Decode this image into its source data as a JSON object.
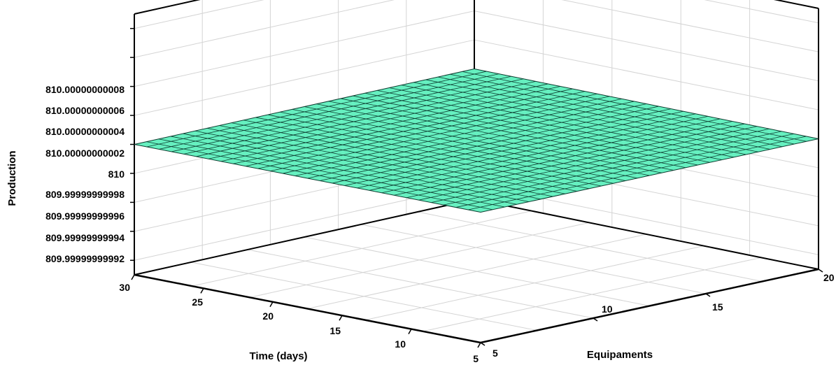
{
  "chart_data": {
    "type": "surface",
    "xlabel": "Equipaments",
    "ylabel": "Time (days)",
    "zlabel": "Production",
    "x_ticks": [
      "5",
      "10",
      "15",
      "20"
    ],
    "y_ticks": [
      "30",
      "25",
      "20",
      "15",
      "10",
      "5"
    ],
    "z_ticks": [
      "809.99999999992",
      "809.99999999994",
      "809.99999999996",
      "809.99999999998",
      "810",
      "810.00000000002",
      "810.00000000004",
      "810.00000000006",
      "810.00000000008"
    ],
    "xlim": [
      5,
      20
    ],
    "ylim": [
      5,
      30
    ],
    "zlim": [
      809.99999999991,
      810.00000000009
    ],
    "surface": {
      "z_value": 810,
      "description_value": 810
    },
    "colors": {
      "surface_fill": "#66f0c0",
      "surface_mesh": "#0d3d30",
      "frame": "#000000",
      "grid": "#d4d4d4"
    },
    "grid": true,
    "legend": "none"
  }
}
